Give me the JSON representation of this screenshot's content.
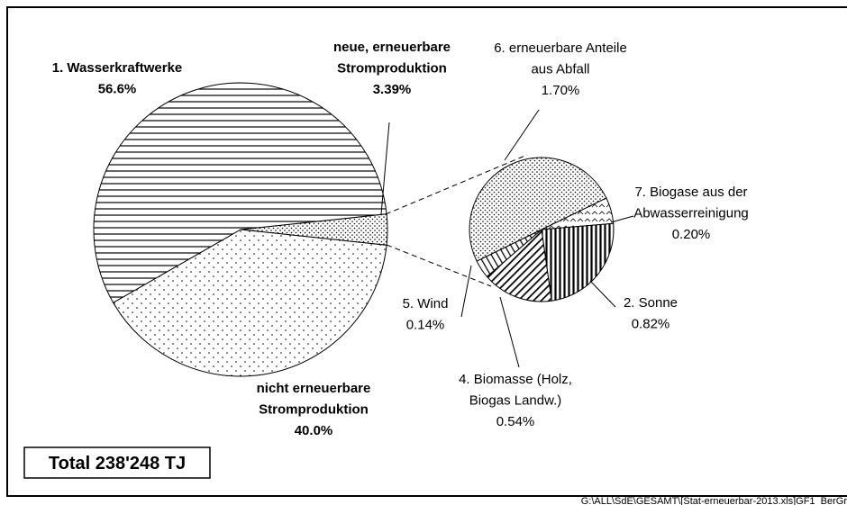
{
  "chart_data": {
    "type": "pie-of-pie",
    "pies": [
      {
        "categories": [
          [
            "neue, erneuerbare",
            "Stromproduktion"
          ],
          [
            "nicht erneuerbare",
            "Stromproduktion"
          ],
          [
            "1. Wasserkraftwerke"
          ]
        ],
        "values": [
          3.39,
          40.0,
          56.6
        ],
        "value_labels": [
          "3.39%",
          "40.0%",
          "56.6%"
        ]
      },
      {
        "categories": [
          [
            "7. Biogase aus der",
            "Abwasserreinigung"
          ],
          [
            "2. Sonne"
          ],
          [
            "4. Biomasse (Holz,",
            "Biogas Landw.)"
          ],
          [
            "5. Wind"
          ],
          [
            "6. erneuerbare Anteile",
            "aus Abfall"
          ]
        ],
        "values": [
          0.2,
          0.82,
          0.54,
          0.14,
          1.7
        ],
        "value_labels": [
          "0.20%",
          "0.82%",
          "0.54%",
          "0.14%",
          "1.70%"
        ]
      }
    ],
    "annotation": "Total  238'248 TJ",
    "footer": "G:\\ALL\\SdE\\GESAMT\\[Stat-erneuerbar-2013.xls]GF1_BerGr"
  }
}
